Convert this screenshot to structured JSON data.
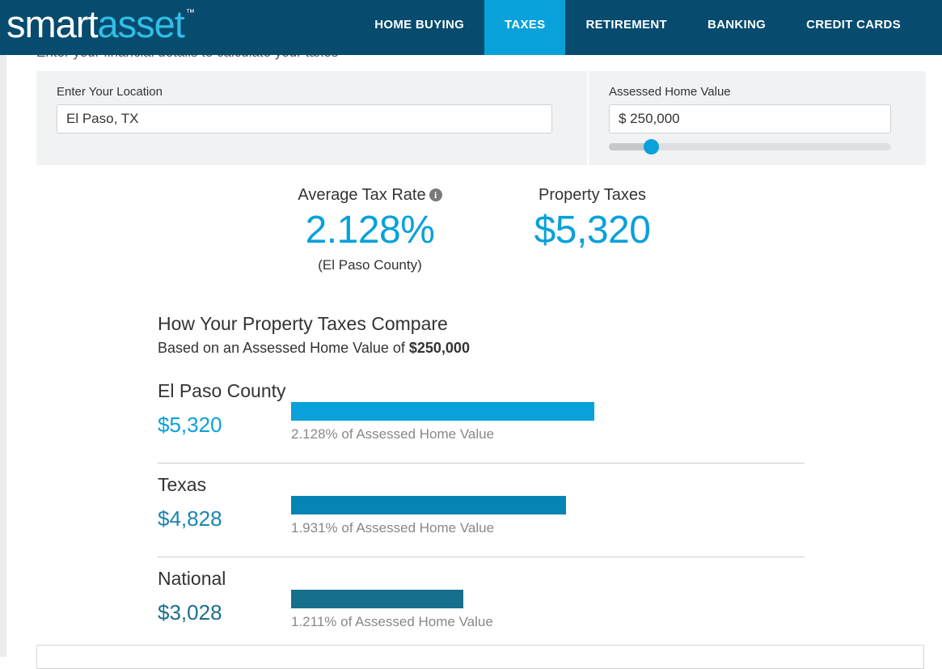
{
  "header": {
    "logo_part1": "smart",
    "logo_part2": "asset",
    "logo_tm": "™",
    "nav": [
      {
        "label": "HOME BUYING",
        "active": false
      },
      {
        "label": "TAXES",
        "active": true
      },
      {
        "label": "RETIREMENT",
        "active": false
      },
      {
        "label": "BANKING",
        "active": false
      },
      {
        "label": "CREDIT CARDS",
        "active": false
      }
    ]
  },
  "intro_text": "Enter your financial details to calculate your taxes",
  "location": {
    "label": "Enter Your Location",
    "value": "El Paso, TX"
  },
  "home_value": {
    "label": "Assessed Home Value",
    "value": "$ 250,000",
    "slider_fraction": 0.15
  },
  "summary": {
    "rate_label": "Average Tax Rate",
    "rate_value": "2.128%",
    "rate_sub": "(El Paso County)",
    "taxes_label": "Property Taxes",
    "taxes_value": "$5,320"
  },
  "compare": {
    "title": "How Your Property Taxes Compare",
    "sub_prefix": "Based on an Assessed Home Value of ",
    "sub_value": "$250,000",
    "rows": [
      {
        "name": "El Paso County",
        "amount": "$5,320",
        "amount_value": 5320,
        "note": "2.128% of Assessed Home Value",
        "color": "#08a1da",
        "amount_color": "#08a1da"
      },
      {
        "name": "Texas",
        "amount": "$4,828",
        "amount_value": 4828,
        "note": "1.931% of Assessed Home Value",
        "color": "#0685b5",
        "amount_color": "#1a86b2"
      },
      {
        "name": "National",
        "amount": "$3,028",
        "amount_value": 3028,
        "note": "1.211% of Assessed Home Value",
        "color": "#166f8c",
        "amount_color": "#1b6f8c"
      }
    ]
  }
}
